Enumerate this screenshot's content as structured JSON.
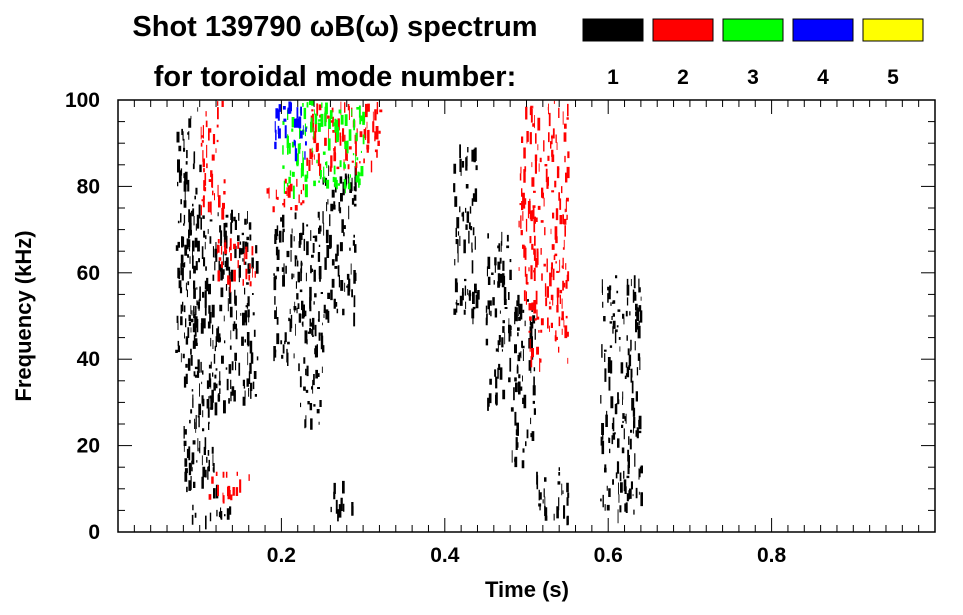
{
  "chart_data": {
    "type": "heatmap",
    "title": [
      "Shot 139790 ωB(ω) spectrum",
      "for toroidal mode number:"
    ],
    "xlabel": "Time (s)",
    "ylabel": "Frequency (kHz)",
    "xlim": [
      0.0,
      1.0
    ],
    "ylim": [
      0,
      100
    ],
    "x_ticks": [
      0.2,
      0.4,
      0.6,
      0.8
    ],
    "x_tick_labels": [
      "0.2",
      "0.4",
      "0.6",
      "0.8"
    ],
    "y_ticks": [
      0,
      20,
      40,
      60,
      80,
      100
    ],
    "y_tick_labels": [
      "0",
      "20",
      "40",
      "60",
      "80",
      "100"
    ],
    "grid": false,
    "legend_position": "top-right",
    "legend": [
      {
        "label": "1",
        "color": "#000000"
      },
      {
        "label": "2",
        "color": "#ff0000"
      },
      {
        "label": "3",
        "color": "#00ff00"
      },
      {
        "label": "4",
        "color": "#0000ff"
      },
      {
        "label": "5",
        "color": "#ffff00"
      }
    ],
    "regions": [
      {
        "mode": "1",
        "t": [
          0.07,
          0.1
        ],
        "f": [
          40,
          100
        ]
      },
      {
        "mode": "1",
        "t": [
          0.09,
          0.17
        ],
        "f": [
          30,
          75
        ]
      },
      {
        "mode": "1",
        "t": [
          0.08,
          0.12
        ],
        "f": [
          10,
          40
        ]
      },
      {
        "mode": "1",
        "t": [
          0.09,
          0.14
        ],
        "f": [
          3,
          7
        ]
      },
      {
        "mode": "1",
        "t": [
          0.19,
          0.22
        ],
        "f": [
          40,
          75
        ]
      },
      {
        "mode": "1",
        "t": [
          0.22,
          0.25
        ],
        "f": [
          25,
          75
        ]
      },
      {
        "mode": "1",
        "t": [
          0.25,
          0.29
        ],
        "f": [
          50,
          85
        ]
      },
      {
        "mode": "1",
        "t": [
          0.26,
          0.29
        ],
        "f": [
          5,
          12
        ]
      },
      {
        "mode": "1",
        "t": [
          0.41,
          0.44
        ],
        "f": [
          50,
          90
        ]
      },
      {
        "mode": "1",
        "t": [
          0.45,
          0.48
        ],
        "f": [
          30,
          70
        ]
      },
      {
        "mode": "1",
        "t": [
          0.48,
          0.51
        ],
        "f": [
          15,
          55
        ]
      },
      {
        "mode": "1",
        "t": [
          0.51,
          0.55
        ],
        "f": [
          3,
          15
        ]
      },
      {
        "mode": "1",
        "t": [
          0.59,
          0.64
        ],
        "f": [
          5,
          60
        ]
      },
      {
        "mode": "2",
        "t": [
          0.1,
          0.13
        ],
        "f": [
          75,
          100
        ]
      },
      {
        "mode": "2",
        "t": [
          0.12,
          0.17
        ],
        "f": [
          58,
          68
        ]
      },
      {
        "mode": "2",
        "t": [
          0.18,
          0.23
        ],
        "f": [
          75,
          82
        ]
      },
      {
        "mode": "2",
        "t": [
          0.23,
          0.32
        ],
        "f": [
          84,
          100
        ]
      },
      {
        "mode": "2",
        "t": [
          0.49,
          0.55
        ],
        "f": [
          55,
          100
        ]
      },
      {
        "mode": "2",
        "t": [
          0.5,
          0.55
        ],
        "f": [
          40,
          55
        ]
      },
      {
        "mode": "2",
        "t": [
          0.11,
          0.16
        ],
        "f": [
          8,
          14
        ]
      },
      {
        "mode": "3",
        "t": [
          0.2,
          0.3
        ],
        "f": [
          80,
          100
        ]
      },
      {
        "mode": "4",
        "t": [
          0.19,
          0.23
        ],
        "f": [
          88,
          100
        ]
      }
    ]
  }
}
